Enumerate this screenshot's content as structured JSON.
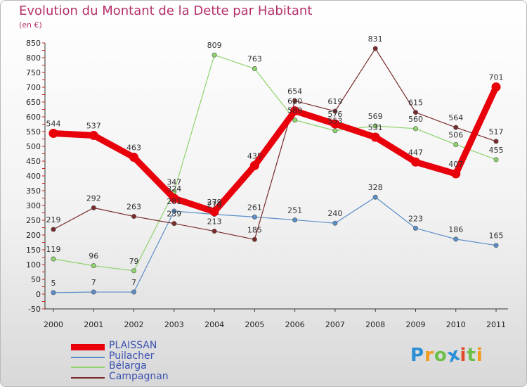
{
  "chart_data": {
    "type": "line",
    "title": "Evolution du Montant de la Dette par Habitant",
    "subtitle": "(en €)",
    "x": [
      "2000",
      "2001",
      "2002",
      "2003",
      "2004",
      "2005",
      "2006",
      "2007",
      "2008",
      "2009",
      "2010",
      "2011"
    ],
    "ylim": [
      -50,
      850
    ],
    "yticks": [
      -50,
      0,
      50,
      100,
      150,
      200,
      250,
      300,
      350,
      400,
      450,
      500,
      550,
      600,
      650,
      700,
      750,
      800,
      850
    ],
    "grid": false,
    "legend_position": "bottom-left",
    "series": [
      {
        "name": "PLAISSAN",
        "color": "#e8000b",
        "values": [
          544,
          537,
          463,
          324,
          279,
          435,
          620,
          576,
          531,
          447,
          407,
          701
        ],
        "labels": [
          "544",
          "537",
          "463",
          "324",
          "279",
          "435",
          "620",
          "576",
          "531",
          "447",
          "407",
          "701"
        ]
      },
      {
        "name": "Puilacher",
        "color": "#5b8ec8",
        "values": [
          5,
          7,
          7,
          281,
          270,
          261,
          251,
          240,
          328,
          223,
          186,
          165
        ],
        "labels": [
          "5",
          "7",
          "7",
          "281",
          "270",
          "261",
          "251",
          "240",
          "328",
          "223",
          "186",
          "165"
        ]
      },
      {
        "name": "Bélarga",
        "color": "#8ed36b",
        "values": [
          119,
          96,
          79,
          347,
          809,
          763,
          589,
          553,
          569,
          560,
          506,
          455
        ],
        "labels": [
          "119",
          "96",
          "79",
          "347",
          "809",
          "763",
          "589",
          "553",
          "569",
          "560",
          "506",
          "455"
        ]
      },
      {
        "name": "Campagnan",
        "color": "#7a2a2a",
        "values": [
          219,
          292,
          263,
          239,
          213,
          185,
          654,
          619,
          831,
          615,
          564,
          517
        ],
        "labels": [
          "219",
          "292",
          "263",
          "239",
          "213",
          "185",
          "654",
          "619",
          "831",
          "615",
          "564",
          "517"
        ]
      }
    ]
  },
  "logo": {
    "letters": [
      "P",
      "r",
      "o",
      "x",
      "i",
      "t",
      "i"
    ],
    "colors": [
      "#2a8fd6",
      "#f29a1e",
      "#6cc04a",
      "#2a8fd6",
      "#e24a2a",
      "#6cc04a",
      "#f29a1e"
    ]
  }
}
